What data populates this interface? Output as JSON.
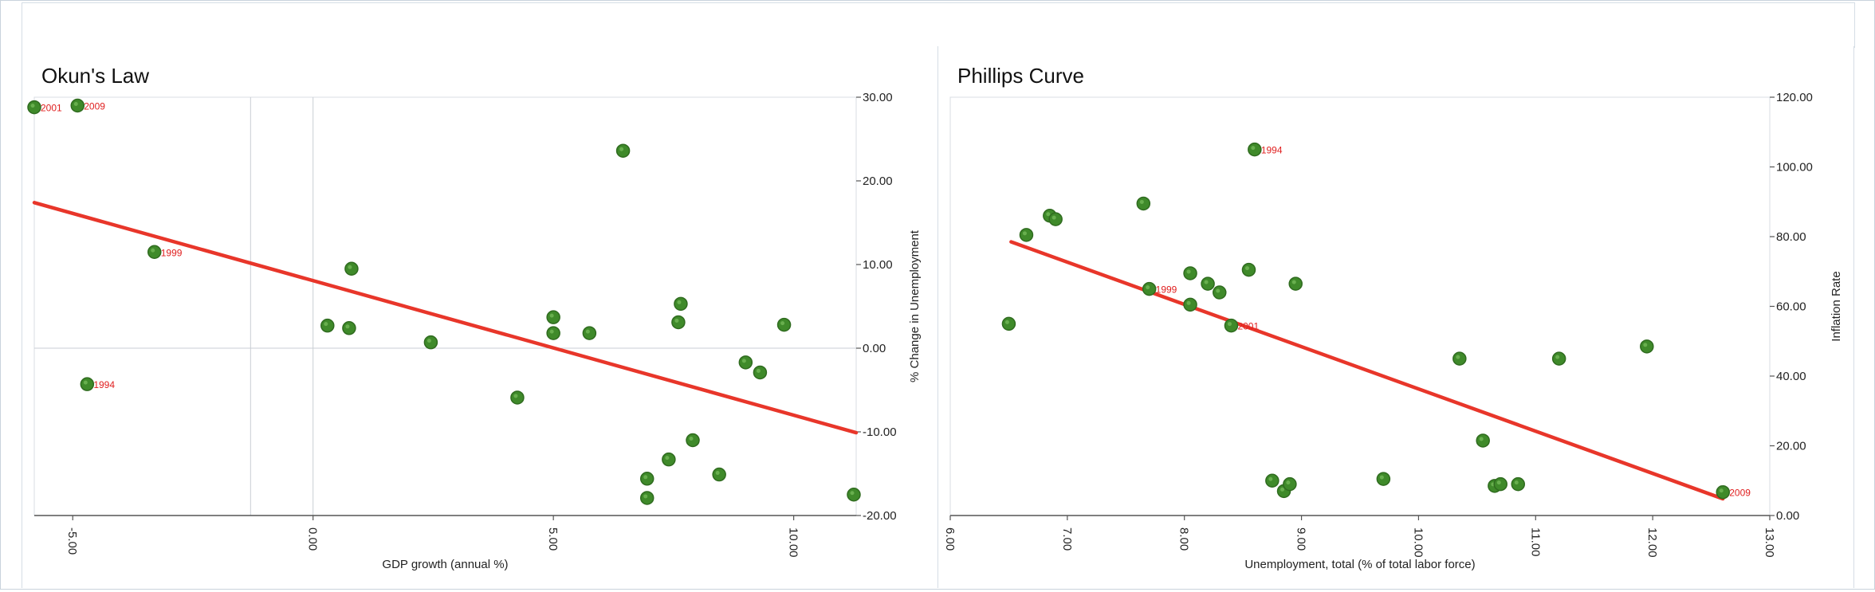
{
  "chart_data": [
    {
      "type": "scatter",
      "title": "Okun's Law",
      "xlabel": "GDP growth (annual %)",
      "ylabel": "% Change in Unemployment",
      "xlim": [
        -5.8,
        11.3
      ],
      "ylim": [
        -20,
        30
      ],
      "xticks": [
        -5,
        0,
        5,
        10
      ],
      "yticks": [
        30,
        20,
        10,
        0,
        -10,
        -20
      ],
      "tick_labels_x": [
        "-5.00",
        "0.00",
        "5.00",
        "10.00"
      ],
      "tick_labels_y": [
        "30.00",
        "20.00",
        "10.00",
        "0.00",
        "-10.00",
        "-20.00"
      ],
      "y_axis_side": "right",
      "grid_x": [
        -1.3,
        0
      ],
      "grid_y": [
        0
      ],
      "points": [
        {
          "x": -5.8,
          "y": 28.8,
          "label": "2001"
        },
        {
          "x": -4.9,
          "y": 29.0,
          "label": "2009"
        },
        {
          "x": -3.3,
          "y": 11.5,
          "label": "1999"
        },
        {
          "x": -4.7,
          "y": -4.3,
          "label": "1994"
        },
        {
          "x": 0.3,
          "y": 2.7,
          "label": ""
        },
        {
          "x": 0.75,
          "y": 2.4,
          "label": ""
        },
        {
          "x": 0.8,
          "y": 9.5,
          "label": ""
        },
        {
          "x": 2.45,
          "y": 0.7,
          "label": ""
        },
        {
          "x": 4.25,
          "y": -5.9,
          "label": ""
        },
        {
          "x": 5.0,
          "y": 3.7,
          "label": ""
        },
        {
          "x": 5.0,
          "y": 1.8,
          "label": ""
        },
        {
          "x": 5.75,
          "y": 1.8,
          "label": ""
        },
        {
          "x": 6.45,
          "y": 23.6,
          "label": ""
        },
        {
          "x": 6.95,
          "y": -15.6,
          "label": ""
        },
        {
          "x": 6.95,
          "y": -17.9,
          "label": ""
        },
        {
          "x": 7.4,
          "y": -13.3,
          "label": ""
        },
        {
          "x": 7.6,
          "y": 3.1,
          "label": ""
        },
        {
          "x": 7.65,
          "y": 5.3,
          "label": ""
        },
        {
          "x": 7.9,
          "y": -11.0,
          "label": ""
        },
        {
          "x": 8.45,
          "y": -15.1,
          "label": ""
        },
        {
          "x": 9.0,
          "y": -1.7,
          "label": ""
        },
        {
          "x": 9.3,
          "y": -2.9,
          "label": ""
        },
        {
          "x": 9.8,
          "y": 2.8,
          "label": ""
        },
        {
          "x": 11.25,
          "y": -17.5,
          "label": ""
        }
      ],
      "trendline": {
        "x": [
          -5.8,
          11.3
        ],
        "y": [
          17.4,
          -10.1
        ]
      },
      "colors": {
        "point": "#3f8a2a",
        "point_stroke": "#2f6b1f",
        "trend": "#e8362a",
        "label": "#e02020"
      }
    },
    {
      "type": "scatter",
      "title": "Phillips Curve",
      "xlabel": "Unemployment, total (% of total labor force)",
      "ylabel": "Inflation Rate",
      "xlim": [
        6.0,
        13.0
      ],
      "ylim": [
        0,
        120
      ],
      "xticks": [
        6,
        7,
        8,
        9,
        10,
        11,
        12,
        13
      ],
      "yticks": [
        0,
        20,
        40,
        60,
        80,
        100,
        120
      ],
      "tick_labels_x": [
        "6.00",
        "7.00",
        "8.00",
        "9.00",
        "10.00",
        "11.00",
        "12.00",
        "13.00"
      ],
      "tick_labels_y": [
        "0.00",
        "20.00",
        "40.00",
        "60.00",
        "80.00",
        "100.00",
        "120.00"
      ],
      "y_axis_side": "right",
      "points": [
        {
          "x": 8.6,
          "y": 105.0,
          "label": "1994"
        },
        {
          "x": 7.7,
          "y": 65.0,
          "label": "1999"
        },
        {
          "x": 8.4,
          "y": 54.5,
          "label": "2001"
        },
        {
          "x": 12.6,
          "y": 6.7,
          "label": "2009"
        },
        {
          "x": 6.5,
          "y": 55.0,
          "label": ""
        },
        {
          "x": 6.65,
          "y": 80.5,
          "label": ""
        },
        {
          "x": 6.85,
          "y": 86.0,
          "label": ""
        },
        {
          "x": 6.9,
          "y": 85.0,
          "label": ""
        },
        {
          "x": 7.65,
          "y": 89.5,
          "label": ""
        },
        {
          "x": 8.05,
          "y": 69.5,
          "label": ""
        },
        {
          "x": 8.05,
          "y": 60.5,
          "label": ""
        },
        {
          "x": 8.2,
          "y": 66.5,
          "label": ""
        },
        {
          "x": 8.3,
          "y": 64.0,
          "label": ""
        },
        {
          "x": 8.55,
          "y": 70.5,
          "label": ""
        },
        {
          "x": 8.95,
          "y": 66.5,
          "label": ""
        },
        {
          "x": 8.75,
          "y": 10.0,
          "label": ""
        },
        {
          "x": 8.85,
          "y": 7.0,
          "label": ""
        },
        {
          "x": 8.9,
          "y": 9.0,
          "label": ""
        },
        {
          "x": 9.7,
          "y": 10.5,
          "label": ""
        },
        {
          "x": 10.35,
          "y": 45.0,
          "label": ""
        },
        {
          "x": 10.55,
          "y": 21.5,
          "label": ""
        },
        {
          "x": 10.65,
          "y": 8.5,
          "label": ""
        },
        {
          "x": 10.7,
          "y": 9.0,
          "label": ""
        },
        {
          "x": 10.85,
          "y": 9.0,
          "label": ""
        },
        {
          "x": 11.2,
          "y": 45.0,
          "label": ""
        },
        {
          "x": 11.95,
          "y": 48.5,
          "label": ""
        }
      ],
      "trendline": {
        "x": [
          6.52,
          12.6
        ],
        "y": [
          78.5,
          4.8
        ]
      },
      "colors": {
        "point": "#3f8a2a",
        "point_stroke": "#2f6b1f",
        "trend": "#e8362a",
        "label": "#e02020"
      }
    }
  ]
}
